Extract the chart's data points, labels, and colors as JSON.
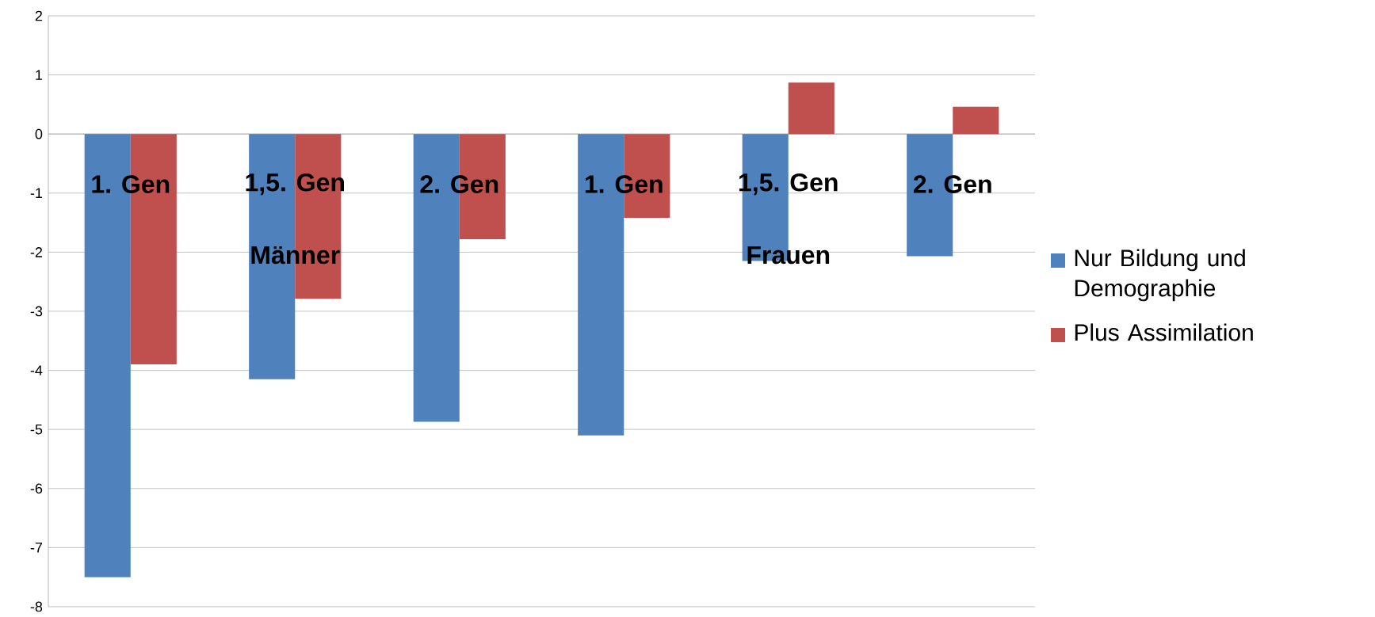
{
  "chart_data": {
    "type": "bar",
    "categories": [
      "1. Gen",
      "1,5. Gen",
      "2. Gen",
      "1. Gen",
      "1,5. Gen",
      "2. Gen"
    ],
    "series": [
      {
        "name": "Nur Bildung und Demographie",
        "color": "#4f81bd",
        "values": [
          -7.5,
          -4.15,
          -4.87,
          -5.1,
          -2.15,
          -2.07
        ]
      },
      {
        "name": "Plus Assimilation",
        "color": "#c0504d",
        "values": [
          -3.9,
          -2.79,
          -1.78,
          -1.42,
          0.87,
          0.46
        ]
      }
    ],
    "annotations": [
      "Männer",
      "Frauen"
    ],
    "ylim": [
      -8,
      2
    ],
    "yticks": [
      -8,
      -7,
      -6,
      -5,
      -4,
      -3,
      -2,
      -1,
      0,
      1,
      2
    ],
    "grid": "y",
    "legend": "right"
  }
}
